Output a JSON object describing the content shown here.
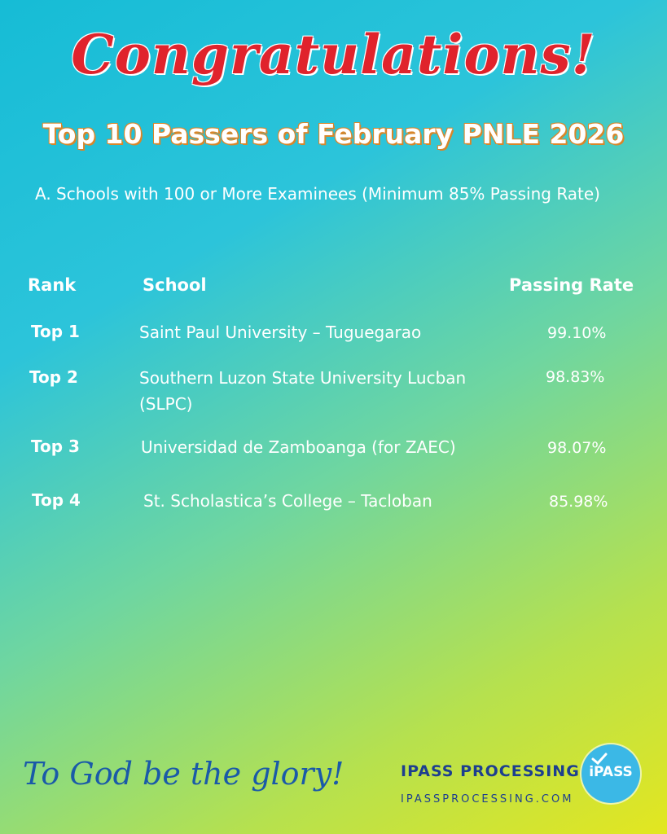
{
  "title": "Congratulations!",
  "headline": "Top 10 Passers of February PNLE 2026",
  "subtitle": "A. Schools with 100 or More Examinees (Minimum 85% Passing Rate)",
  "table": {
    "headers": {
      "rank": "Rank",
      "school": "School",
      "rate": "Passing Rate"
    },
    "rows": [
      {
        "rank": "Top 1",
        "school": "Saint Paul University – Tuguegarao",
        "rate": "99.10%"
      },
      {
        "rank": "Top 2",
        "school": "Southern Luzon State University Lucban (SLPC)",
        "rate": "98.83%"
      },
      {
        "rank": "Top 3",
        "school": "Universidad de Zamboanga (for ZAEC)",
        "rate": "98.07%"
      },
      {
        "rank": "Top 4",
        "school": "St. Scholastica’s College – Tacloban",
        "rate": "85.98%"
      }
    ]
  },
  "footer": {
    "tagline": "To God be the glory!",
    "brand_name": "IPASS PROCESSING",
    "brand_url": "IPASSPROCESSING.COM",
    "logo_text": "iPASS"
  },
  "colors": {
    "title": "#e0232c",
    "headline_outline": "#d9862a",
    "brand": "#1d3f8f",
    "logo": "#3bb8e6"
  },
  "icons": [
    "checkmark-icon",
    "ipass-logo"
  ]
}
